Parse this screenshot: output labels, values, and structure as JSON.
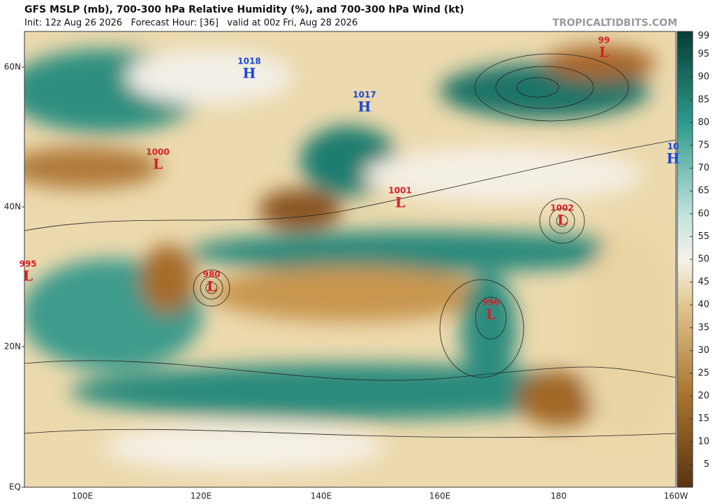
{
  "header": {
    "title": "GFS MSLP (mb), 700-300 hPa Relative Humidity (%), and 700-300 hPa Wind (kt)",
    "subtitle": "Init: 12z Aug 26 2026   Forecast Hour: [36]   valid at 00z Fri, Aug 28 2026",
    "watermark": "TROPICALTIDBITS.COM"
  },
  "map": {
    "lat_labels": [
      "60N",
      "40N",
      "20N",
      "EQ"
    ],
    "lon_labels": [
      "100E",
      "120E",
      "140E",
      "160E",
      "180",
      "160W"
    ],
    "centers": [
      {
        "kind": "H",
        "pressure": "1018"
      },
      {
        "kind": "H",
        "pressure": "1017"
      },
      {
        "kind": "L",
        "pressure": "1000"
      },
      {
        "kind": "L",
        "pressure": "1001"
      },
      {
        "kind": "L",
        "pressure": "1002"
      },
      {
        "kind": "L",
        "pressure": "995"
      },
      {
        "kind": "L",
        "pressure": "980"
      },
      {
        "kind": "L",
        "pressure": "996"
      },
      {
        "kind": "L",
        "pressure": "99"
      },
      {
        "kind": "H",
        "pressure": "10"
      }
    ]
  },
  "colorbar": {
    "ticks": [
      99,
      95,
      90,
      85,
      80,
      75,
      70,
      65,
      60,
      55,
      50,
      45,
      40,
      35,
      30,
      25,
      20,
      15,
      10,
      5
    ]
  }
}
